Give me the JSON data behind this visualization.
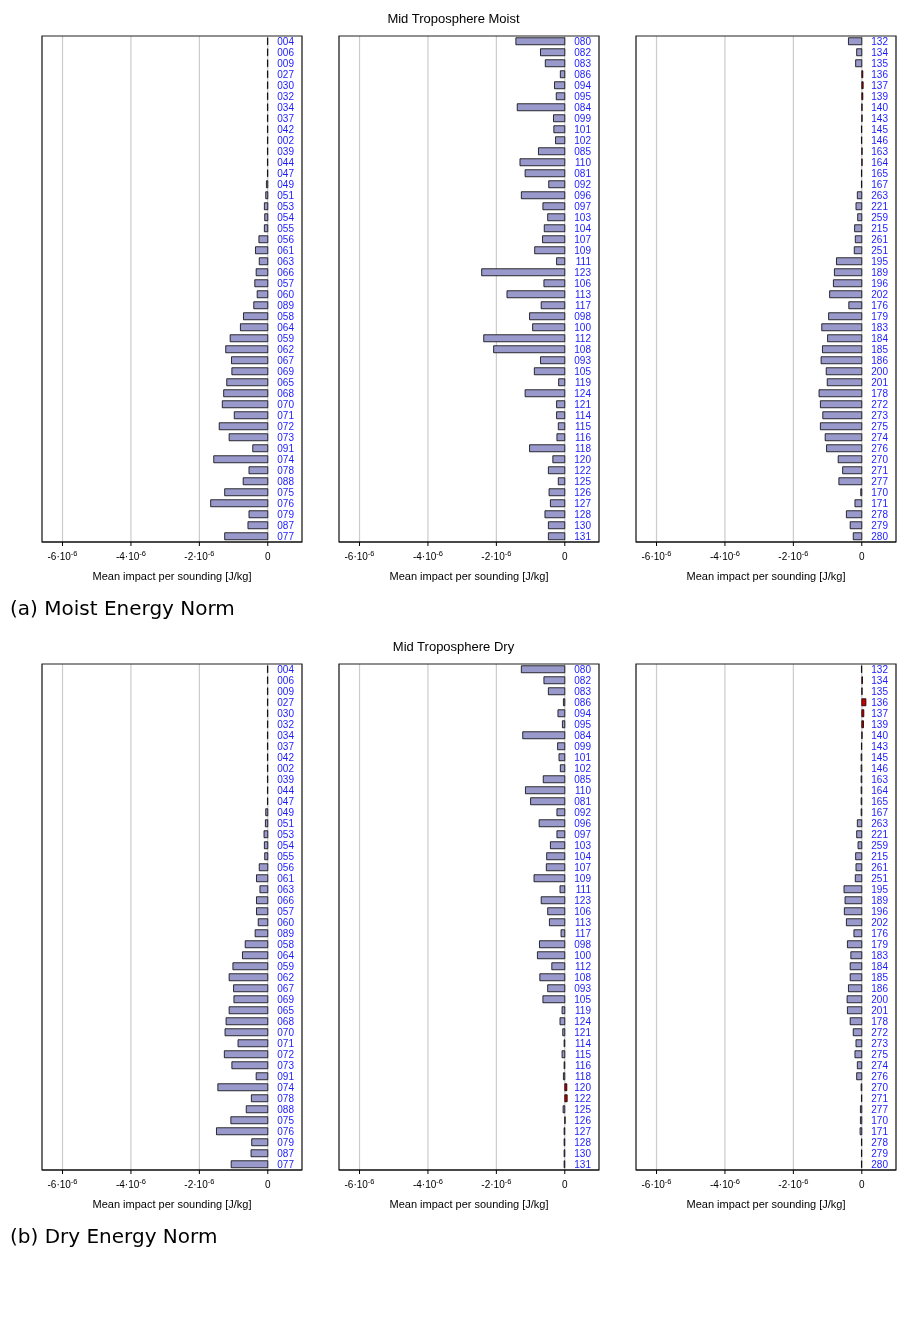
{
  "chart_data": [
    {
      "type": "bar",
      "orientation": "horizontal",
      "xlabel": "Mean impact per sounding [J/kg]",
      "annotations": [
        "(a) Moist Energy Norm"
      ],
      "grid": "x",
      "xlim": [
        -6.6e-06,
        1e-06
      ],
      "xticks": [
        {
          "value": -6e-06,
          "label": "-6·10$^{-6}$"
        },
        {
          "value": -4e-06,
          "label": "-4·10$^{-6}$"
        },
        {
          "value": -2e-06,
          "label": "-2·10$^{-6}$"
        },
        {
          "value": 0,
          "label": "0"
        }
      ],
      "categories": [
        "004",
        "006",
        "009",
        "027",
        "030",
        "032",
        "034",
        "037",
        "042",
        "002",
        "039",
        "044",
        "047",
        "049",
        "051",
        "053",
        "054",
        "055",
        "056",
        "061",
        "063",
        "066",
        "057",
        "060",
        "089",
        "058",
        "064",
        "059",
        "062",
        "067",
        "069",
        "065",
        "068",
        "070",
        "071",
        "072",
        "073",
        "091",
        "074",
        "078",
        "088",
        "075",
        "076",
        "079",
        "087",
        "077"
      ],
      "values": [
        -1e-08,
        -1e-08,
        -1e-08,
        -1e-08,
        -1e-08,
        -1e-08,
        -1e-08,
        -1e-08,
        -1e-08,
        -1e-08,
        -1e-08,
        -1e-08,
        -1e-08,
        -4e-08,
        -6e-08,
        -1e-07,
        -9e-08,
        -1e-07,
        -2.6e-07,
        -3.6e-07,
        -2.5e-07,
        -3.4e-07,
        -3.8e-07,
        -3.1e-07,
        -4.1e-07,
        -7.1e-07,
        -8e-07,
        -1.1e-06,
        -1.23e-06,
        -1.06e-06,
        -1.05e-06,
        -1.2e-06,
        -1.29e-06,
        -1.33e-06,
        -9.8e-07,
        -1.42e-06,
        -1.13e-06,
        -4.4e-07,
        -1.58e-06,
        -5.5e-07,
        -7.2e-07,
        -1.26e-06,
        -1.67e-06,
        -5.5e-07,
        -5.8e-07,
        -1.26e-06
      ],
      "colors": [
        "#9999cc",
        "#9999cc",
        "#9999cc",
        "#9999cc",
        "#9999cc",
        "#9999cc",
        "#9999cc",
        "#9999cc",
        "#9999cc",
        "#9999cc",
        "#9999cc",
        "#9999cc",
        "#9999cc",
        "#9999cc",
        "#9999cc",
        "#9999cc",
        "#9999cc",
        "#9999cc",
        "#9999cc",
        "#9999cc",
        "#9999cc",
        "#9999cc",
        "#9999cc",
        "#9999cc",
        "#9999cc",
        "#9999cc",
        "#9999cc",
        "#9999cc",
        "#9999cc",
        "#9999cc",
        "#9999cc",
        "#9999cc",
        "#9999cc",
        "#9999cc",
        "#9999cc",
        "#9999cc",
        "#9999cc",
        "#9999cc",
        "#9999cc",
        "#9999cc",
        "#9999cc",
        "#9999cc",
        "#9999cc",
        "#9999cc",
        "#9999cc",
        "#9999cc"
      ]
    },
    {
      "type": "bar",
      "orientation": "horizontal",
      "title": "Mid Troposphere Moist",
      "xlabel": "Mean impact per sounding [J/kg]",
      "grid": "x",
      "xlim": [
        -6.6e-06,
        1e-06
      ],
      "xticks": [
        {
          "value": -6e-06,
          "label": "-6·10$^{-6}$"
        },
        {
          "value": -4e-06,
          "label": "-4·10$^{-6}$"
        },
        {
          "value": -2e-06,
          "label": "-2·10$^{-6}$"
        },
        {
          "value": 0,
          "label": "0"
        }
      ],
      "categories": [
        "080",
        "082",
        "083",
        "086",
        "094",
        "095",
        "084",
        "099",
        "101",
        "102",
        "085",
        "110",
        "081",
        "092",
        "096",
        "097",
        "103",
        "104",
        "107",
        "109",
        "111",
        "123",
        "106",
        "113",
        "117",
        "098",
        "100",
        "112",
        "108",
        "093",
        "105",
        "119",
        "124",
        "121",
        "114",
        "115",
        "116",
        "118",
        "120",
        "122",
        "125",
        "126",
        "127",
        "128",
        "130",
        "131"
      ],
      "values": [
        -1.43e-06,
        -7.1e-07,
        -5.7e-07,
        -1.3e-07,
        -3e-07,
        -2.5e-07,
        -1.39e-06,
        -3.3e-07,
        -3.2e-07,
        -2.7e-07,
        -7.7e-07,
        -1.31e-06,
        -1.16e-06,
        -4.7e-07,
        -1.27e-06,
        -6.4e-07,
        -5e-07,
        -6e-07,
        -6.5e-07,
        -8.8e-07,
        -2.4e-07,
        -2.43e-06,
        -6.1e-07,
        -1.69e-06,
        -6.9e-07,
        -1.03e-06,
        -9.4e-07,
        -2.37e-06,
        -2.08e-06,
        -7.1e-07,
        -8.9e-07,
        -1.8e-07,
        -1.16e-06,
        -2.4e-07,
        -2.4e-07,
        -1.9e-07,
        -2.3e-07,
        -1.03e-06,
        -3.5e-07,
        -4.8e-07,
        -1.9e-07,
        -4.6e-07,
        -4.2e-07,
        -5.8e-07,
        -4.8e-07,
        -4.8e-07
      ],
      "colors": [
        "#9999cc",
        "#9999cc",
        "#9999cc",
        "#9999cc",
        "#9999cc",
        "#9999cc",
        "#9999cc",
        "#9999cc",
        "#9999cc",
        "#9999cc",
        "#9999cc",
        "#9999cc",
        "#9999cc",
        "#9999cc",
        "#9999cc",
        "#9999cc",
        "#9999cc",
        "#9999cc",
        "#9999cc",
        "#9999cc",
        "#9999cc",
        "#9999cc",
        "#9999cc",
        "#9999cc",
        "#9999cc",
        "#9999cc",
        "#9999cc",
        "#9999cc",
        "#9999cc",
        "#9999cc",
        "#9999cc",
        "#9999cc",
        "#9999cc",
        "#9999cc",
        "#9999cc",
        "#9999cc",
        "#9999cc",
        "#9999cc",
        "#9999cc",
        "#9999cc",
        "#9999cc",
        "#9999cc",
        "#9999cc",
        "#9999cc",
        "#9999cc",
        "#9999cc"
      ]
    },
    {
      "type": "bar",
      "orientation": "horizontal",
      "xlabel": "Mean impact per sounding [J/kg]",
      "grid": "x",
      "xlim": [
        -6.6e-06,
        1e-06
      ],
      "xticks": [
        {
          "value": -6e-06,
          "label": "-6·10$^{-6}$"
        },
        {
          "value": -4e-06,
          "label": "-4·10$^{-6}$"
        },
        {
          "value": -2e-06,
          "label": "-2·10$^{-6}$"
        },
        {
          "value": 0,
          "label": "0"
        }
      ],
      "categories": [
        "132",
        "134",
        "135",
        "136",
        "137",
        "139",
        "140",
        "143",
        "145",
        "146",
        "163",
        "164",
        "165",
        "167",
        "263",
        "221",
        "259",
        "215",
        "261",
        "251",
        "195",
        "189",
        "196",
        "202",
        "176",
        "179",
        "183",
        "184",
        "185",
        "186",
        "200",
        "201",
        "178",
        "272",
        "273",
        "275",
        "274",
        "276",
        "270",
        "271",
        "277",
        "170",
        "171",
        "278",
        "279",
        "280"
      ],
      "values": [
        -3.9e-07,
        -1.5e-07,
        -1.8e-07,
        3e-08,
        4e-08,
        3e-08,
        1e-08,
        1e-08,
        -1e-08,
        -1e-08,
        1e-08,
        1e-08,
        -1e-08,
        -1e-08,
        -1.3e-07,
        -1.7e-07,
        -1.2e-07,
        -2.1e-07,
        -1.9e-07,
        -2.2e-07,
        -7.4e-07,
        -8e-07,
        -8.3e-07,
        -9.4e-07,
        -3.8e-07,
        -9.7e-07,
        -1.17e-06,
        -1e-06,
        -1.15e-06,
        -1.19e-06,
        -1.04e-06,
        -1.01e-06,
        -1.25e-06,
        -1.21e-06,
        -1.14e-06,
        -1.21e-06,
        -1.07e-06,
        -1.03e-06,
        -6.9e-07,
        -5.6e-07,
        -6.7e-07,
        -3e-08,
        -2e-07,
        -4.5e-07,
        -3.4e-07,
        -2.5e-07
      ],
      "colors": [
        "#9999cc",
        "#9999cc",
        "#9999cc",
        "#cc0000",
        "#cc0000",
        "#cc0000",
        "#cc0000",
        "#cc0000",
        "#9999cc",
        "#9999cc",
        "#cc0000",
        "#cc0000",
        "#9999cc",
        "#9999cc",
        "#9999cc",
        "#9999cc",
        "#9999cc",
        "#9999cc",
        "#9999cc",
        "#9999cc",
        "#9999cc",
        "#9999cc",
        "#9999cc",
        "#9999cc",
        "#9999cc",
        "#9999cc",
        "#9999cc",
        "#9999cc",
        "#9999cc",
        "#9999cc",
        "#9999cc",
        "#9999cc",
        "#9999cc",
        "#9999cc",
        "#9999cc",
        "#9999cc",
        "#9999cc",
        "#9999cc",
        "#9999cc",
        "#9999cc",
        "#9999cc",
        "#9999cc",
        "#9999cc",
        "#9999cc",
        "#9999cc",
        "#9999cc"
      ]
    },
    {
      "type": "bar",
      "orientation": "horizontal",
      "xlabel": "Mean impact per sounding [J/kg]",
      "annotations": [
        "(b) Dry Energy Norm"
      ],
      "grid": "x",
      "xlim": [
        -6.6e-06,
        1e-06
      ],
      "xticks": [
        {
          "value": -6e-06,
          "label": "-6·10$^{-6}$"
        },
        {
          "value": -4e-06,
          "label": "-4·10$^{-6}$"
        },
        {
          "value": -2e-06,
          "label": "-2·10$^{-6}$"
        },
        {
          "value": 0,
          "label": "0"
        }
      ],
      "categories": [
        "004",
        "006",
        "009",
        "027",
        "030",
        "032",
        "034",
        "037",
        "042",
        "002",
        "039",
        "044",
        "047",
        "049",
        "051",
        "053",
        "054",
        "055",
        "056",
        "061",
        "063",
        "066",
        "057",
        "060",
        "089",
        "058",
        "064",
        "059",
        "062",
        "067",
        "069",
        "065",
        "068",
        "070",
        "071",
        "072",
        "073",
        "091",
        "074",
        "078",
        "088",
        "075",
        "076",
        "079",
        "087",
        "077"
      ],
      "values": [
        -1e-08,
        -1e-08,
        -1e-08,
        -1e-08,
        -1e-08,
        -1e-08,
        -1e-08,
        -1e-08,
        -1e-08,
        -1e-08,
        -1e-08,
        -1e-08,
        -1e-08,
        -6e-08,
        -7e-08,
        -1.1e-07,
        -1e-07,
        -9e-08,
        -2.5e-07,
        -3.3e-07,
        -2.3e-07,
        -3.3e-07,
        -3.3e-07,
        -2.8e-07,
        -3.7e-07,
        -6.6e-07,
        -7.4e-07,
        -1.02e-06,
        -1.13e-06,
        -1e-06,
        -9.9e-07,
        -1.13e-06,
        -1.22e-06,
        -1.25e-06,
        -8.7e-07,
        -1.27e-06,
        -1.05e-06,
        -3.4e-07,
        -1.46e-06,
        -4.8e-07,
        -6.3e-07,
        -1.08e-06,
        -1.5e-06,
        -4.7e-07,
        -4.9e-07,
        -1.07e-06
      ],
      "colors": [
        "#9999cc",
        "#9999cc",
        "#9999cc",
        "#9999cc",
        "#9999cc",
        "#9999cc",
        "#9999cc",
        "#9999cc",
        "#9999cc",
        "#9999cc",
        "#9999cc",
        "#9999cc",
        "#9999cc",
        "#9999cc",
        "#9999cc",
        "#9999cc",
        "#9999cc",
        "#9999cc",
        "#9999cc",
        "#9999cc",
        "#9999cc",
        "#9999cc",
        "#9999cc",
        "#9999cc",
        "#9999cc",
        "#9999cc",
        "#9999cc",
        "#9999cc",
        "#9999cc",
        "#9999cc",
        "#9999cc",
        "#9999cc",
        "#9999cc",
        "#9999cc",
        "#9999cc",
        "#9999cc",
        "#9999cc",
        "#9999cc",
        "#9999cc",
        "#9999cc",
        "#9999cc",
        "#9999cc",
        "#9999cc",
        "#9999cc",
        "#9999cc",
        "#9999cc"
      ]
    },
    {
      "type": "bar",
      "orientation": "horizontal",
      "title": "Mid Troposphere Dry",
      "xlabel": "Mean impact per sounding [J/kg]",
      "grid": "x",
      "xlim": [
        -6.6e-06,
        1e-06
      ],
      "xticks": [
        {
          "value": -6e-06,
          "label": "-6·10$^{-6}$"
        },
        {
          "value": -4e-06,
          "label": "-4·10$^{-6}$"
        },
        {
          "value": -2e-06,
          "label": "-2·10$^{-6}$"
        },
        {
          "value": 0,
          "label": "0"
        }
      ],
      "categories": [
        "080",
        "082",
        "083",
        "086",
        "094",
        "095",
        "084",
        "099",
        "101",
        "102",
        "085",
        "110",
        "081",
        "092",
        "096",
        "097",
        "103",
        "104",
        "107",
        "109",
        "111",
        "123",
        "106",
        "113",
        "117",
        "098",
        "100",
        "112",
        "108",
        "093",
        "105",
        "119",
        "124",
        "121",
        "114",
        "115",
        "116",
        "118",
        "120",
        "122",
        "125",
        "126",
        "127",
        "128",
        "130",
        "131"
      ],
      "values": [
        -1.27e-06,
        -6.1e-07,
        -4.8e-07,
        -4e-08,
        -2e-07,
        -7e-08,
        -1.23e-06,
        -2.1e-07,
        -1.7e-07,
        -1.3e-07,
        -6.3e-07,
        -1.15e-06,
        -1e-06,
        -2.3e-07,
        -7.5e-07,
        -2.3e-07,
        -4.2e-07,
        -5.3e-07,
        -5.4e-07,
        -9e-07,
        -1.4e-07,
        -6.9e-07,
        -5e-07,
        -4.5e-07,
        -1.1e-07,
        -7.4e-07,
        -8e-07,
        -3.8e-07,
        -7.3e-07,
        -5e-07,
        -6.4e-07,
        -8e-08,
        -1.4e-07,
        -6e-08,
        -2e-08,
        -8e-08,
        -2e-08,
        -4e-08,
        6e-08,
        7e-08,
        -5e-08,
        1e-08,
        -2e-08,
        -2e-08,
        -2e-08,
        -2e-08
      ],
      "colors": [
        "#9999cc",
        "#9999cc",
        "#9999cc",
        "#9999cc",
        "#9999cc",
        "#9999cc",
        "#9999cc",
        "#9999cc",
        "#9999cc",
        "#9999cc",
        "#9999cc",
        "#9999cc",
        "#9999cc",
        "#9999cc",
        "#9999cc",
        "#9999cc",
        "#9999cc",
        "#9999cc",
        "#9999cc",
        "#9999cc",
        "#9999cc",
        "#9999cc",
        "#9999cc",
        "#9999cc",
        "#9999cc",
        "#9999cc",
        "#9999cc",
        "#9999cc",
        "#9999cc",
        "#9999cc",
        "#9999cc",
        "#9999cc",
        "#9999cc",
        "#9999cc",
        "#9999cc",
        "#9999cc",
        "#9999cc",
        "#9999cc",
        "#cc0000",
        "#cc0000",
        "#9999cc",
        "#cc0000",
        "#9999cc",
        "#9999cc",
        "#9999cc",
        "#9999cc"
      ]
    },
    {
      "type": "bar",
      "orientation": "horizontal",
      "xlabel": "Mean impact per sounding [J/kg]",
      "grid": "x",
      "xlim": [
        -6.6e-06,
        1e-06
      ],
      "xticks": [
        {
          "value": -6e-06,
          "label": "-6·10$^{-6}$"
        },
        {
          "value": -4e-06,
          "label": "-4·10$^{-6}$"
        },
        {
          "value": -2e-06,
          "label": "-2·10$^{-6}$"
        },
        {
          "value": 0,
          "label": "0"
        }
      ],
      "categories": [
        "132",
        "134",
        "135",
        "136",
        "137",
        "139",
        "140",
        "143",
        "145",
        "146",
        "163",
        "164",
        "165",
        "167",
        "263",
        "221",
        "259",
        "215",
        "261",
        "251",
        "195",
        "189",
        "196",
        "202",
        "176",
        "179",
        "183",
        "184",
        "185",
        "186",
        "200",
        "201",
        "178",
        "272",
        "273",
        "275",
        "274",
        "276",
        "270",
        "271",
        "277",
        "170",
        "171",
        "278",
        "279",
        "280"
      ],
      "values": [
        -1e-08,
        2e-08,
        1e-08,
        1.2e-07,
        6e-08,
        5e-08,
        1e-08,
        -1e-08,
        -2e-08,
        -2e-08,
        -2e-08,
        -2e-08,
        -2e-08,
        -2e-08,
        -1.3e-07,
        -1.5e-07,
        -1.1e-07,
        -1.8e-07,
        -1.7e-07,
        -1.9e-07,
        -5.2e-07,
        -4.9e-07,
        -5.1e-07,
        -4.5e-07,
        -2.3e-07,
        -4.2e-07,
        -3.2e-07,
        -3.4e-07,
        -3.4e-07,
        -3.9e-07,
        -4.3e-07,
        -4.2e-07,
        -3.4e-07,
        -2.5e-07,
        -1.7e-07,
        -2e-07,
        -1.3e-07,
        -1.5e-07,
        -2e-08,
        -1e-08,
        -4e-08,
        -4e-08,
        -5e-08,
        -1e-08,
        -1e-08,
        -1e-08
      ],
      "colors": [
        "#9999cc",
        "#cc0000",
        "#cc0000",
        "#cc0000",
        "#cc0000",
        "#cc0000",
        "#cc0000",
        "#9999cc",
        "#9999cc",
        "#9999cc",
        "#9999cc",
        "#9999cc",
        "#9999cc",
        "#9999cc",
        "#9999cc",
        "#9999cc",
        "#9999cc",
        "#9999cc",
        "#9999cc",
        "#9999cc",
        "#9999cc",
        "#9999cc",
        "#9999cc",
        "#9999cc",
        "#9999cc",
        "#9999cc",
        "#9999cc",
        "#9999cc",
        "#9999cc",
        "#9999cc",
        "#9999cc",
        "#9999cc",
        "#9999cc",
        "#9999cc",
        "#9999cc",
        "#9999cc",
        "#9999cc",
        "#9999cc",
        "#9999cc",
        "#9999cc",
        "#9999cc",
        "#9999cc",
        "#9999cc",
        "#9999cc",
        "#9999cc",
        "#9999cc"
      ]
    }
  ]
}
